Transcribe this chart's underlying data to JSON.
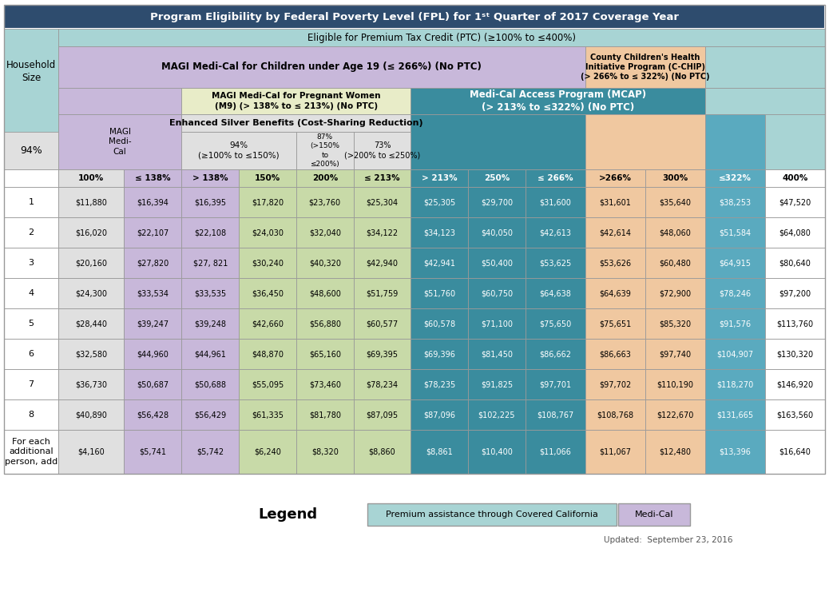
{
  "title": "Program Eligibility by Federal Poverty Level (FPL) for 1st Quarter of 2017 Coverage Year",
  "subtitle": "Eligible for Premium Tax Credit (PTC) (≥100% to ≤400%)",
  "col_headers": [
    "100%",
    "≤ 138%",
    "> 138%",
    "150%",
    "200%",
    "≤ 213%",
    "> 213%",
    "250%",
    "≤ 266%",
    ">266%",
    "300%",
    "≤322%",
    "400%"
  ],
  "rows": {
    "1": [
      "$11,880",
      "$16,394",
      "$16,395",
      "$17,820",
      "$23,760",
      "$25,304",
      "$25,305",
      "$29,700",
      "$31,600",
      "$31,601",
      "$35,640",
      "$38,253",
      "$47,520"
    ],
    "2": [
      "$16,020",
      "$22,107",
      "$22,108",
      "$24,030",
      "$32,040",
      "$34,122",
      "$34,123",
      "$40,050",
      "$42,613",
      "$42,614",
      "$48,060",
      "$51,584",
      "$64,080"
    ],
    "3": [
      "$20,160",
      "$27,820",
      "$27, 821",
      "$30,240",
      "$40,320",
      "$42,940",
      "$42,941",
      "$50,400",
      "$53,625",
      "$53,626",
      "$60,480",
      "$64,915",
      "$80,640"
    ],
    "4": [
      "$24,300",
      "$33,534",
      "$33,535",
      "$36,450",
      "$48,600",
      "$51,759",
      "$51,760",
      "$60,750",
      "$64,638",
      "$64,639",
      "$72,900",
      "$78,246",
      "$97,200"
    ],
    "5": [
      "$28,440",
      "$39,247",
      "$39,248",
      "$42,660",
      "$56,880",
      "$60,577",
      "$60,578",
      "$71,100",
      "$75,650",
      "$75,651",
      "$85,320",
      "$91,576",
      "$113,760"
    ],
    "6": [
      "$32,580",
      "$44,960",
      "$44,961",
      "$48,870",
      "$65,160",
      "$69,395",
      "$69,396",
      "$81,450",
      "$86,662",
      "$86,663",
      "$97,740",
      "$104,907",
      "$130,320"
    ],
    "7": [
      "$36,730",
      "$50,687",
      "$50,688",
      "$55,095",
      "$73,460",
      "$78,234",
      "$78,235",
      "$91,825",
      "$97,701",
      "$97,702",
      "$110,190",
      "$118,270",
      "$146,920"
    ],
    "8": [
      "$40,890",
      "$56,428",
      "$56,429",
      "$61,335",
      "$81,780",
      "$87,095",
      "$87,096",
      "$102,225",
      "$108,767",
      "$108,768",
      "$122,670",
      "$131,665",
      "$163,560"
    ],
    "add": [
      "$4,160",
      "$5,741",
      "$5,742",
      "$6,240",
      "$8,320",
      "$8,860",
      "$8,861",
      "$10,400",
      "$11,066",
      "$11,067",
      "$12,480",
      "$13,396",
      "$16,640"
    ]
  },
  "colors": {
    "dark_blue": "#2E4C6E",
    "light_teal": "#A8D4D4",
    "purple": "#C8B8DA",
    "green": "#C8DAA8",
    "teal_dark": "#3A8C9E",
    "peach": "#F0C8A0",
    "teal_med": "#5AAABF",
    "white": "#FFFFFF",
    "light_gray": "#E0E0E0",
    "border": "#999999"
  },
  "legend_text1": "Premium assistance through Covered California",
  "legend_text2": "Medi-Cal",
  "updated": "Updated:  September 23, 2016"
}
